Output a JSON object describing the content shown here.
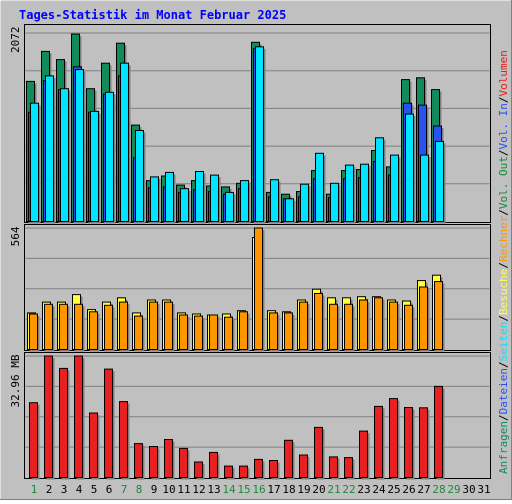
{
  "title": "Tages-Statistik im Monat Februar 2025",
  "colors": {
    "frame_bg": "#c0c0c0",
    "plot_bg": "#c0c0c0",
    "grid": "#808080",
    "title": "#0000ff",
    "hits": "#138a5a",
    "files": "#2952f0",
    "pages": "#00e4ff",
    "visits": "#ffff40",
    "sites": "#ff9600",
    "volume": "#e82020",
    "weekend_day": "#1a8a3a",
    "today": "#1a8a3a",
    "weekday": "#000000"
  },
  "chart_data": [
    {
      "type": "bar",
      "name": "hits-files-pages",
      "ymax_label": "2072",
      "ylim": [
        0,
        2072
      ],
      "categories": [
        "1",
        "2",
        "3",
        "4",
        "5",
        "6",
        "7",
        "8",
        "9",
        "10",
        "11",
        "12",
        "13",
        "14",
        "15",
        "16",
        "17",
        "18",
        "19",
        "20",
        "21",
        "22",
        "23",
        "24",
        "25",
        "26",
        "27",
        "28",
        "29",
        "30",
        "31"
      ],
      "series": [
        {
          "name": "Anfragen",
          "values": [
            1540,
            1870,
            1780,
            2060,
            1460,
            1740,
            1960,
            1060,
            450,
            500,
            400,
            450,
            390,
            380,
            420,
            1970,
            320,
            300,
            330,
            560,
            300,
            560,
            570,
            780,
            600,
            1560,
            1580,
            1450,
            0,
            0,
            0
          ]
        },
        {
          "name": "Dateien",
          "values": [
            1200,
            1550,
            1450,
            1700,
            1200,
            1400,
            1600,
            700,
            370,
            380,
            320,
            350,
            330,
            300,
            360,
            1900,
            270,
            250,
            270,
            470,
            260,
            470,
            480,
            660,
            510,
            1300,
            1280,
            1050,
            0,
            0,
            0
          ]
        },
        {
          "name": "Seiten",
          "values": [
            1300,
            1600,
            1460,
            1670,
            1210,
            1420,
            1740,
            1000,
            490,
            540,
            360,
            550,
            510,
            320,
            450,
            1920,
            460,
            250,
            410,
            750,
            420,
            620,
            630,
            920,
            730,
            1180,
            730,
            880,
            0,
            0,
            0
          ]
        }
      ]
    },
    {
      "type": "bar",
      "name": "visits-sites",
      "ymax_label": "564",
      "ylim": [
        0,
        564
      ],
      "categories": [
        "1",
        "2",
        "3",
        "4",
        "5",
        "6",
        "7",
        "8",
        "9",
        "10",
        "11",
        "12",
        "13",
        "14",
        "15",
        "16",
        "17",
        "18",
        "19",
        "20",
        "21",
        "22",
        "23",
        "24",
        "25",
        "26",
        "27",
        "28",
        "29",
        "30",
        "31"
      ],
      "series": [
        {
          "name": "Besuche",
          "values": [
            170,
            220,
            220,
            255,
            185,
            220,
            240,
            170,
            230,
            230,
            170,
            165,
            160,
            165,
            180,
            520,
            180,
            175,
            230,
            280,
            240,
            240,
            245,
            245,
            230,
            225,
            320,
            345,
            0,
            0,
            0
          ]
        },
        {
          "name": "Rechner",
          "values": [
            165,
            210,
            210,
            210,
            175,
            205,
            220,
            155,
            220,
            220,
            160,
            155,
            160,
            150,
            175,
            564,
            170,
            170,
            220,
            260,
            210,
            210,
            230,
            240,
            220,
            205,
            290,
            315,
            0,
            0,
            0
          ]
        }
      ]
    },
    {
      "type": "bar",
      "name": "volume",
      "ymax_label": "32.96 MB",
      "ylim": [
        0,
        32.96
      ],
      "categories": [
        "1",
        "2",
        "3",
        "4",
        "5",
        "6",
        "7",
        "8",
        "9",
        "10",
        "11",
        "12",
        "13",
        "14",
        "15",
        "16",
        "17",
        "18",
        "19",
        "20",
        "21",
        "22",
        "23",
        "24",
        "25",
        "26",
        "27",
        "28",
        "29",
        "30",
        "31"
      ],
      "series": [
        {
          "name": "Volumen",
          "values": [
            20.3,
            32.96,
            29.6,
            32.96,
            17.5,
            29.4,
            20.6,
            9.2,
            8.4,
            10.3,
            7.9,
            4.2,
            6.8,
            3.1,
            3.1,
            4.9,
            4.6,
            10.1,
            6.1,
            13.6,
            5.6,
            5.4,
            12.6,
            19.3,
            21.4,
            19.0,
            18.9,
            24.7,
            0,
            0,
            0
          ]
        }
      ]
    }
  ],
  "day_labels": [
    "1",
    "2",
    "3",
    "4",
    "5",
    "6",
    "7",
    "8",
    "9",
    "10",
    "11",
    "12",
    "13",
    "14",
    "15",
    "16",
    "17",
    "18",
    "19",
    "20",
    "21",
    "22",
    "23",
    "24",
    "25",
    "26",
    "27",
    "28",
    "29",
    "30",
    "31"
  ],
  "green_days": [
    1,
    7,
    8,
    14,
    15,
    16,
    21,
    22,
    28,
    29
  ],
  "right_legend": [
    {
      "text": "Anfragen",
      "color": "#138a5a"
    },
    {
      "text": "/",
      "color": "#000000"
    },
    {
      "text": "Dateien",
      "color": "#2952f0"
    },
    {
      "text": "/",
      "color": "#000000"
    },
    {
      "text": "Seiten",
      "color": "#00e4ff"
    },
    {
      "text": "/",
      "color": "#000000"
    },
    {
      "text": "Besuche",
      "color": "#ffff40"
    },
    {
      "text": "/",
      "color": "#000000"
    },
    {
      "text": "Rechner",
      "color": "#ff9600"
    },
    {
      "text": "/",
      "color": "#000000"
    },
    {
      "text": "Vol. Out",
      "color": "#1a8a3a"
    },
    {
      "text": "/",
      "color": "#000000"
    },
    {
      "text": "Vol. In",
      "color": "#2952f0"
    },
    {
      "text": "/",
      "color": "#000000"
    },
    {
      "text": "Volumen",
      "color": "#e82020"
    }
  ]
}
